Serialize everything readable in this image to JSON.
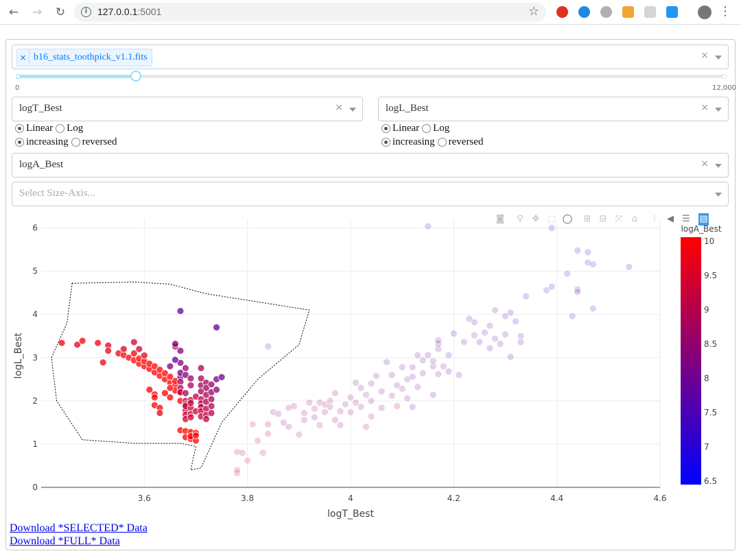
{
  "browser": {
    "host": "127.0.0.1",
    "port": ":5001"
  },
  "file_select": {
    "selected": "b16_stats_toothpick_v1.1.fits",
    "remove_glyph": "×",
    "clear_glyph": "×"
  },
  "slider": {
    "min_label": "0",
    "max_label": "12,000",
    "value": 2000,
    "max": 12000
  },
  "x_axis_select": {
    "value": "logT_Best",
    "clear_glyph": "×"
  },
  "y_axis_select": {
    "value": "logL_Best",
    "clear_glyph": "×"
  },
  "x_scale": {
    "options": [
      "Linear",
      "Log"
    ],
    "selected": "Linear"
  },
  "x_order": {
    "options": [
      "increasing",
      "reversed"
    ],
    "selected": "increasing"
  },
  "y_scale": {
    "options": [
      "Linear",
      "Log"
    ],
    "selected": "Linear"
  },
  "y_order": {
    "options": [
      "increasing",
      "reversed"
    ],
    "selected": "increasing"
  },
  "color_select": {
    "value": "logA_Best",
    "clear_glyph": "×"
  },
  "size_select": {
    "placeholder": "Select Size-Axis..."
  },
  "links": {
    "selected": "Download *SELECTED* Data",
    "full": "Download *FULL* Data"
  },
  "colors": {
    "colorscale_low": "#0000ff",
    "colorscale_high": "#ff0000",
    "accent": "#007eff"
  },
  "chart_data": {
    "type": "scatter",
    "title": "",
    "xlabel": "logT_Best",
    "ylabel": "logL_Best",
    "xlim": [
      3.4,
      4.6
    ],
    "ylim": [
      0,
      6.2
    ],
    "x_ticks": [
      "3.6",
      "3.8",
      "4",
      "4.2",
      "4.4",
      "4.6"
    ],
    "y_ticks": [
      "0",
      "1",
      "2",
      "3",
      "4",
      "5",
      "6"
    ],
    "grid": true,
    "colorbar": {
      "title": "logA_Best",
      "range": [
        6.5,
        10
      ],
      "ticks": [
        "10",
        "9.5",
        "9",
        "8.5",
        "8",
        "7.5",
        "7",
        "6.5"
      ]
    },
    "selection": "lasso",
    "lasso_path": [
      [
        3.46,
        4.72
      ],
      [
        3.58,
        4.75
      ],
      [
        3.65,
        4.7
      ],
      [
        3.72,
        4.48
      ],
      [
        3.92,
        4.1
      ],
      [
        3.9,
        3.3
      ],
      [
        3.82,
        2.5
      ],
      [
        3.75,
        1.5
      ],
      [
        3.71,
        0.45
      ],
      [
        3.69,
        0.4
      ],
      [
        3.7,
        0.95
      ],
      [
        3.67,
        1.02
      ],
      [
        3.58,
        1.02
      ],
      [
        3.48,
        1.1
      ],
      [
        3.43,
        2.0
      ],
      [
        3.42,
        3.0
      ],
      [
        3.45,
        3.8
      ],
      [
        3.46,
        4.72
      ]
    ],
    "points_selected": [
      {
        "x": 3.44,
        "y": 3.34,
        "c": 9.9
      },
      {
        "x": 3.47,
        "y": 3.3,
        "c": 9.6
      },
      {
        "x": 3.48,
        "y": 3.39,
        "c": 9.8
      },
      {
        "x": 3.51,
        "y": 3.34,
        "c": 9.8
      },
      {
        "x": 3.52,
        "y": 2.89,
        "c": 9.8
      },
      {
        "x": 3.53,
        "y": 3.28,
        "c": 9.6
      },
      {
        "x": 3.53,
        "y": 3.16,
        "c": 9.7
      },
      {
        "x": 3.55,
        "y": 3.1,
        "c": 9.9
      },
      {
        "x": 3.56,
        "y": 3.06,
        "c": 10
      },
      {
        "x": 3.56,
        "y": 3.2,
        "c": 9.5
      },
      {
        "x": 3.57,
        "y": 3.0,
        "c": 10
      },
      {
        "x": 3.58,
        "y": 2.94,
        "c": 10
      },
      {
        "x": 3.58,
        "y": 3.36,
        "c": 9.3
      },
      {
        "x": 3.58,
        "y": 3.1,
        "c": 9.8
      },
      {
        "x": 3.59,
        "y": 2.86,
        "c": 10
      },
      {
        "x": 3.59,
        "y": 2.98,
        "c": 10
      },
      {
        "x": 3.6,
        "y": 2.8,
        "c": 10
      },
      {
        "x": 3.6,
        "y": 2.92,
        "c": 10
      },
      {
        "x": 3.61,
        "y": 2.74,
        "c": 10
      },
      {
        "x": 3.61,
        "y": 2.86,
        "c": 10
      },
      {
        "x": 3.62,
        "y": 2.66,
        "c": 10
      },
      {
        "x": 3.62,
        "y": 2.8,
        "c": 10
      },
      {
        "x": 3.63,
        "y": 2.58,
        "c": 10
      },
      {
        "x": 3.63,
        "y": 2.72,
        "c": 10
      },
      {
        "x": 3.64,
        "y": 2.5,
        "c": 10
      },
      {
        "x": 3.64,
        "y": 2.64,
        "c": 10
      },
      {
        "x": 3.65,
        "y": 2.42,
        "c": 10
      },
      {
        "x": 3.65,
        "y": 2.56,
        "c": 10
      },
      {
        "x": 3.66,
        "y": 2.36,
        "c": 10
      },
      {
        "x": 3.66,
        "y": 2.46,
        "c": 10
      },
      {
        "x": 3.66,
        "y": 2.24,
        "c": 10
      },
      {
        "x": 3.65,
        "y": 2.08,
        "c": 10
      },
      {
        "x": 3.67,
        "y": 2.2,
        "c": 10
      },
      {
        "x": 3.67,
        "y": 2.0,
        "c": 10
      },
      {
        "x": 3.62,
        "y": 2.15,
        "c": 10
      },
      {
        "x": 3.61,
        "y": 2.26,
        "c": 9.8
      },
      {
        "x": 3.62,
        "y": 2.08,
        "c": 10
      },
      {
        "x": 3.62,
        "y": 1.9,
        "c": 10
      },
      {
        "x": 3.63,
        "y": 1.84,
        "c": 9.8
      },
      {
        "x": 3.63,
        "y": 1.72,
        "c": 9.7
      },
      {
        "x": 3.64,
        "y": 2.18,
        "c": 10
      },
      {
        "x": 3.65,
        "y": 2.3,
        "c": 10
      },
      {
        "x": 3.6,
        "y": 3.05,
        "c": 9.6
      },
      {
        "x": 3.59,
        "y": 3.2,
        "c": 9.4
      },
      {
        "x": 3.67,
        "y": 1.32,
        "c": 10
      },
      {
        "x": 3.68,
        "y": 1.3,
        "c": 10
      },
      {
        "x": 3.68,
        "y": 1.16,
        "c": 10
      },
      {
        "x": 3.69,
        "y": 1.2,
        "c": 10
      },
      {
        "x": 3.69,
        "y": 1.12,
        "c": 10
      },
      {
        "x": 3.7,
        "y": 1.08,
        "c": 10
      },
      {
        "x": 3.69,
        "y": 1.28,
        "c": 10
      },
      {
        "x": 3.7,
        "y": 1.26,
        "c": 10
      },
      {
        "x": 3.69,
        "y": 1.18,
        "c": 10
      },
      {
        "x": 3.7,
        "y": 1.2,
        "c": 10
      },
      {
        "x": 3.66,
        "y": 3.26,
        "c": 9.0
      },
      {
        "x": 3.66,
        "y": 3.32,
        "c": 8.3
      },
      {
        "x": 3.67,
        "y": 2.88,
        "c": 8.2
      },
      {
        "x": 3.67,
        "y": 3.16,
        "c": 8.3
      },
      {
        "x": 3.67,
        "y": 4.08,
        "c": 7.8
      },
      {
        "x": 3.67,
        "y": 2.55,
        "c": 8.5
      },
      {
        "x": 3.67,
        "y": 2.44,
        "c": 8.7
      },
      {
        "x": 3.67,
        "y": 2.3,
        "c": 9.0
      },
      {
        "x": 3.67,
        "y": 2.2,
        "c": 9.0
      },
      {
        "x": 3.67,
        "y": 2.65,
        "c": 8.1
      },
      {
        "x": 3.68,
        "y": 2.76,
        "c": 8.6
      },
      {
        "x": 3.68,
        "y": 2.6,
        "c": 8.3
      },
      {
        "x": 3.68,
        "y": 2.18,
        "c": 8.9
      },
      {
        "x": 3.68,
        "y": 2.0,
        "c": 9.1
      },
      {
        "x": 3.68,
        "y": 1.92,
        "c": 9.2
      },
      {
        "x": 3.68,
        "y": 1.78,
        "c": 9.2
      },
      {
        "x": 3.68,
        "y": 1.68,
        "c": 9.3
      },
      {
        "x": 3.68,
        "y": 1.58,
        "c": 9.3
      },
      {
        "x": 3.68,
        "y": 1.88,
        "c": 9.0
      },
      {
        "x": 3.69,
        "y": 2.52,
        "c": 8.7
      },
      {
        "x": 3.69,
        "y": 2.36,
        "c": 8.8
      },
      {
        "x": 3.69,
        "y": 2.02,
        "c": 9.2
      },
      {
        "x": 3.69,
        "y": 1.84,
        "c": 9.3
      },
      {
        "x": 3.69,
        "y": 1.7,
        "c": 9.3
      },
      {
        "x": 3.69,
        "y": 1.62,
        "c": 9.4
      },
      {
        "x": 3.69,
        "y": 1.95,
        "c": 9.1
      },
      {
        "x": 3.7,
        "y": 1.76,
        "c": 9.2
      },
      {
        "x": 3.7,
        "y": 2.1,
        "c": 9.0
      },
      {
        "x": 3.66,
        "y": 2.95,
        "c": 7.9
      },
      {
        "x": 3.65,
        "y": 2.8,
        "c": 8.2
      },
      {
        "x": 3.71,
        "y": 2.76,
        "c": 8.7
      },
      {
        "x": 3.71,
        "y": 2.52,
        "c": 8.8
      },
      {
        "x": 3.71,
        "y": 2.36,
        "c": 8.8
      },
      {
        "x": 3.71,
        "y": 2.22,
        "c": 8.8
      },
      {
        "x": 3.71,
        "y": 2.04,
        "c": 9.0
      },
      {
        "x": 3.71,
        "y": 1.94,
        "c": 9.1
      },
      {
        "x": 3.71,
        "y": 1.86,
        "c": 9.1
      },
      {
        "x": 3.71,
        "y": 1.76,
        "c": 9.2
      },
      {
        "x": 3.71,
        "y": 1.64,
        "c": 9.2
      },
      {
        "x": 3.72,
        "y": 2.42,
        "c": 8.8
      },
      {
        "x": 3.72,
        "y": 2.3,
        "c": 8.7
      },
      {
        "x": 3.72,
        "y": 2.14,
        "c": 8.8
      },
      {
        "x": 3.72,
        "y": 1.98,
        "c": 8.9
      },
      {
        "x": 3.72,
        "y": 1.82,
        "c": 9.0
      },
      {
        "x": 3.72,
        "y": 1.68,
        "c": 9.2
      },
      {
        "x": 3.73,
        "y": 2.38,
        "c": 8.7
      },
      {
        "x": 3.73,
        "y": 2.2,
        "c": 8.6
      },
      {
        "x": 3.73,
        "y": 2.04,
        "c": 8.8
      },
      {
        "x": 3.73,
        "y": 1.88,
        "c": 8.9
      },
      {
        "x": 3.73,
        "y": 1.72,
        "c": 9.0
      },
      {
        "x": 3.74,
        "y": 2.5,
        "c": 8.2
      },
      {
        "x": 3.74,
        "y": 2.26,
        "c": 8.4
      },
      {
        "x": 3.74,
        "y": 3.7,
        "c": 7.8
      },
      {
        "x": 3.75,
        "y": 2.55,
        "c": 8.0
      },
      {
        "x": 3.72,
        "y": 1.58,
        "c": 9.1
      }
    ],
    "points_unselected": [
      {
        "x": 3.78,
        "y": 0.33,
        "c": 9.5
      },
      {
        "x": 3.78,
        "y": 0.82,
        "c": 9.0
      },
      {
        "x": 3.79,
        "y": 0.8,
        "c": 9.2
      },
      {
        "x": 3.8,
        "y": 0.62,
        "c": 9.8
      },
      {
        "x": 3.81,
        "y": 1.46,
        "c": 9.5
      },
      {
        "x": 3.82,
        "y": 1.08,
        "c": 9.0
      },
      {
        "x": 3.83,
        "y": 0.8,
        "c": 9.0
      },
      {
        "x": 3.84,
        "y": 1.46,
        "c": 8.6
      },
      {
        "x": 3.84,
        "y": 1.24,
        "c": 9.0
      },
      {
        "x": 3.84,
        "y": 3.26,
        "c": 7.8
      },
      {
        "x": 3.85,
        "y": 1.74,
        "c": 8.2
      },
      {
        "x": 3.86,
        "y": 1.7,
        "c": 8.8
      },
      {
        "x": 3.88,
        "y": 1.4,
        "c": 8.0
      },
      {
        "x": 3.88,
        "y": 1.84,
        "c": 8.5
      },
      {
        "x": 3.9,
        "y": 1.22,
        "c": 8.3
      },
      {
        "x": 3.91,
        "y": 1.72,
        "c": 8.8
      },
      {
        "x": 3.91,
        "y": 1.56,
        "c": 8.4
      },
      {
        "x": 3.92,
        "y": 1.96,
        "c": 8.6
      },
      {
        "x": 3.93,
        "y": 1.82,
        "c": 8.5
      },
      {
        "x": 3.93,
        "y": 1.62,
        "c": 8.5
      },
      {
        "x": 3.94,
        "y": 1.96,
        "c": 8.7
      },
      {
        "x": 3.94,
        "y": 1.44,
        "c": 9.0
      },
      {
        "x": 3.95,
        "y": 1.92,
        "c": 8.3
      },
      {
        "x": 3.95,
        "y": 1.74,
        "c": 8.4
      },
      {
        "x": 3.96,
        "y": 2.0,
        "c": 8.5
      },
      {
        "x": 3.96,
        "y": 1.86,
        "c": 8.6
      },
      {
        "x": 3.97,
        "y": 2.18,
        "c": 8.2
      },
      {
        "x": 3.97,
        "y": 1.56,
        "c": 8.3
      },
      {
        "x": 3.98,
        "y": 1.76,
        "c": 8.7
      },
      {
        "x": 3.98,
        "y": 1.44,
        "c": 8.4
      },
      {
        "x": 3.99,
        "y": 1.92,
        "c": 8.3
      },
      {
        "x": 4.0,
        "y": 2.08,
        "c": 8.4
      },
      {
        "x": 4.0,
        "y": 1.74,
        "c": 8.6
      },
      {
        "x": 4.01,
        "y": 2.42,
        "c": 8.1
      },
      {
        "x": 4.01,
        "y": 1.96,
        "c": 8.5
      },
      {
        "x": 4.02,
        "y": 1.86,
        "c": 8.7
      },
      {
        "x": 4.02,
        "y": 2.3,
        "c": 8.2
      },
      {
        "x": 4.03,
        "y": 1.4,
        "c": 8.8
      },
      {
        "x": 4.03,
        "y": 2.14,
        "c": 8.3
      },
      {
        "x": 4.04,
        "y": 1.64,
        "c": 9.0
      },
      {
        "x": 4.04,
        "y": 2.0,
        "c": 8.5
      },
      {
        "x": 4.04,
        "y": 2.4,
        "c": 8.0
      },
      {
        "x": 4.05,
        "y": 2.58,
        "c": 8.1
      },
      {
        "x": 4.06,
        "y": 2.22,
        "c": 8.2
      },
      {
        "x": 4.06,
        "y": 1.84,
        "c": 8.3
      },
      {
        "x": 4.07,
        "y": 2.9,
        "c": 7.8
      },
      {
        "x": 4.08,
        "y": 2.12,
        "c": 8.6
      },
      {
        "x": 4.08,
        "y": 2.6,
        "c": 8.0
      },
      {
        "x": 4.09,
        "y": 2.36,
        "c": 8.0
      },
      {
        "x": 4.09,
        "y": 1.88,
        "c": 8.8
      },
      {
        "x": 4.1,
        "y": 2.78,
        "c": 7.9
      },
      {
        "x": 4.1,
        "y": 2.28,
        "c": 8.3
      },
      {
        "x": 4.11,
        "y": 2.5,
        "c": 8.2
      },
      {
        "x": 4.11,
        "y": 2.06,
        "c": 8.1
      },
      {
        "x": 4.12,
        "y": 1.86,
        "c": 7.8
      },
      {
        "x": 4.12,
        "y": 2.56,
        "c": 8.0
      },
      {
        "x": 4.12,
        "y": 2.78,
        "c": 8.1
      },
      {
        "x": 4.13,
        "y": 3.06,
        "c": 8.0
      },
      {
        "x": 4.13,
        "y": 2.32,
        "c": 8.0
      },
      {
        "x": 4.14,
        "y": 2.64,
        "c": 8.0
      },
      {
        "x": 4.14,
        "y": 2.94,
        "c": 7.9
      },
      {
        "x": 4.15,
        "y": 3.06,
        "c": 7.9
      },
      {
        "x": 4.15,
        "y": 6.04,
        "c": 7.5
      },
      {
        "x": 4.16,
        "y": 2.14,
        "c": 7.7
      },
      {
        "x": 4.16,
        "y": 2.8,
        "c": 7.9
      },
      {
        "x": 4.16,
        "y": 2.92,
        "c": 8.1
      },
      {
        "x": 4.17,
        "y": 2.62,
        "c": 8.4
      },
      {
        "x": 4.17,
        "y": 3.2,
        "c": 8.1
      },
      {
        "x": 4.17,
        "y": 3.32,
        "c": 8.0
      },
      {
        "x": 4.17,
        "y": 3.4,
        "c": 7.8
      },
      {
        "x": 4.18,
        "y": 2.8,
        "c": 8.2
      },
      {
        "x": 4.19,
        "y": 3.06,
        "c": 7.7
      },
      {
        "x": 4.19,
        "y": 2.68,
        "c": 7.6
      },
      {
        "x": 4.2,
        "y": 3.56,
        "c": 7.5
      },
      {
        "x": 4.21,
        "y": 2.6,
        "c": 7.8
      },
      {
        "x": 4.22,
        "y": 3.36,
        "c": 7.8
      },
      {
        "x": 4.23,
        "y": 3.9,
        "c": 7.6
      },
      {
        "x": 4.24,
        "y": 3.52,
        "c": 8.0
      },
      {
        "x": 4.24,
        "y": 3.82,
        "c": 7.9
      },
      {
        "x": 4.25,
        "y": 3.36,
        "c": 7.8
      },
      {
        "x": 4.26,
        "y": 3.58,
        "c": 7.8
      },
      {
        "x": 4.27,
        "y": 3.22,
        "c": 7.7
      },
      {
        "x": 4.27,
        "y": 3.74,
        "c": 7.9
      },
      {
        "x": 4.28,
        "y": 3.44,
        "c": 8.0
      },
      {
        "x": 4.28,
        "y": 4.1,
        "c": 8.2
      },
      {
        "x": 4.29,
        "y": 3.32,
        "c": 7.7
      },
      {
        "x": 4.3,
        "y": 3.96,
        "c": 7.6
      },
      {
        "x": 4.3,
        "y": 3.54,
        "c": 8.0
      },
      {
        "x": 4.31,
        "y": 3.02,
        "c": 7.6
      },
      {
        "x": 4.31,
        "y": 4.04,
        "c": 7.5
      },
      {
        "x": 4.32,
        "y": 3.84,
        "c": 7.5
      },
      {
        "x": 4.33,
        "y": 3.5,
        "c": 7.8
      },
      {
        "x": 4.33,
        "y": 3.36,
        "c": 7.7
      },
      {
        "x": 4.34,
        "y": 4.42,
        "c": 7.5
      },
      {
        "x": 4.38,
        "y": 4.56,
        "c": 7.6
      },
      {
        "x": 4.39,
        "y": 4.64,
        "c": 7.5
      },
      {
        "x": 4.39,
        "y": 6.0,
        "c": 7.4
      },
      {
        "x": 4.42,
        "y": 4.94,
        "c": 7.6
      },
      {
        "x": 4.43,
        "y": 3.96,
        "c": 7.7
      },
      {
        "x": 4.44,
        "y": 4.58,
        "c": 7.6
      },
      {
        "x": 4.44,
        "y": 4.52,
        "c": 7.8
      },
      {
        "x": 4.44,
        "y": 5.48,
        "c": 7.5
      },
      {
        "x": 4.46,
        "y": 5.44,
        "c": 7.4
      },
      {
        "x": 4.46,
        "y": 5.2,
        "c": 7.5
      },
      {
        "x": 4.47,
        "y": 4.14,
        "c": 7.5
      },
      {
        "x": 4.47,
        "y": 5.16,
        "c": 7.5
      },
      {
        "x": 4.54,
        "y": 5.1,
        "c": 7.4
      },
      {
        "x": 3.87,
        "y": 1.5,
        "c": 8.5
      },
      {
        "x": 3.89,
        "y": 1.88,
        "c": 8.6
      },
      {
        "x": 3.78,
        "y": 0.4,
        "c": 9.3
      }
    ]
  }
}
